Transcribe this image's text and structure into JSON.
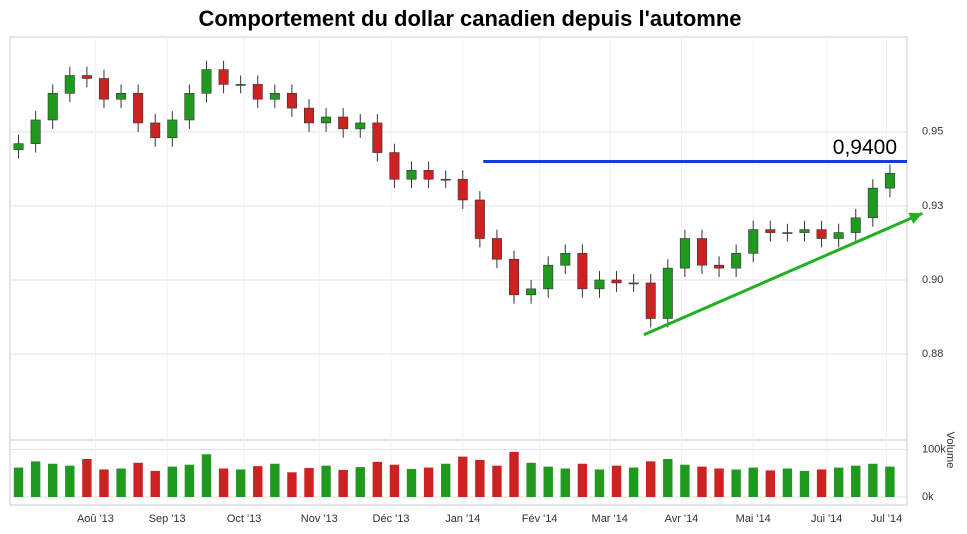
{
  "chart_data": {
    "type": "candlestick",
    "title": "Comportement du dollar canadien depuis l'automne",
    "open": [
      0.944,
      0.946,
      0.954,
      0.963,
      0.969,
      0.968,
      0.961,
      0.963,
      0.953,
      0.948,
      0.954,
      0.963,
      0.971,
      0.966,
      0.966,
      0.961,
      0.963,
      0.958,
      0.953,
      0.955,
      0.951,
      0.953,
      0.943,
      0.934,
      0.937,
      0.934,
      0.934,
      0.927,
      0.914,
      0.907,
      0.895,
      0.897,
      0.905,
      0.909,
      0.897,
      0.9,
      0.899,
      0.899,
      0.887,
      0.904,
      0.914,
      0.905,
      0.904,
      0.909,
      0.917,
      0.916,
      0.916,
      0.917,
      0.914,
      0.916,
      0.921,
      0.931
    ],
    "high": [
      0.949,
      0.957,
      0.966,
      0.972,
      0.972,
      0.971,
      0.966,
      0.966,
      0.956,
      0.957,
      0.966,
      0.974,
      0.974,
      0.969,
      0.969,
      0.966,
      0.966,
      0.961,
      0.958,
      0.958,
      0.956,
      0.956,
      0.946,
      0.94,
      0.94,
      0.937,
      0.937,
      0.93,
      0.917,
      0.91,
      0.9,
      0.908,
      0.912,
      0.912,
      0.903,
      0.903,
      0.902,
      0.902,
      0.907,
      0.917,
      0.917,
      0.908,
      0.912,
      0.92,
      0.92,
      0.919,
      0.92,
      0.92,
      0.919,
      0.924,
      0.934,
      0.939
    ],
    "low": [
      0.941,
      0.943,
      0.951,
      0.96,
      0.965,
      0.958,
      0.958,
      0.95,
      0.945,
      0.945,
      0.951,
      0.96,
      0.963,
      0.963,
      0.958,
      0.958,
      0.955,
      0.95,
      0.95,
      0.948,
      0.948,
      0.94,
      0.931,
      0.931,
      0.931,
      0.931,
      0.924,
      0.911,
      0.904,
      0.892,
      0.892,
      0.894,
      0.902,
      0.894,
      0.894,
      0.896,
      0.896,
      0.884,
      0.884,
      0.901,
      0.902,
      0.901,
      0.901,
      0.906,
      0.913,
      0.913,
      0.913,
      0.911,
      0.911,
      0.913,
      0.918,
      0.928
    ],
    "close": [
      0.946,
      0.954,
      0.963,
      0.969,
      0.968,
      0.961,
      0.963,
      0.953,
      0.948,
      0.954,
      0.963,
      0.971,
      0.966,
      0.966,
      0.961,
      0.963,
      0.958,
      0.953,
      0.955,
      0.951,
      0.953,
      0.943,
      0.934,
      0.937,
      0.934,
      0.934,
      0.927,
      0.914,
      0.907,
      0.895,
      0.897,
      0.905,
      0.909,
      0.897,
      0.9,
      0.899,
      0.899,
      0.887,
      0.904,
      0.914,
      0.905,
      0.904,
      0.909,
      0.917,
      0.916,
      0.916,
      0.917,
      0.914,
      0.916,
      0.921,
      0.931,
      0.936
    ],
    "volume": [
      62000,
      75000,
      70000,
      66000,
      80000,
      58000,
      60000,
      72000,
      55000,
      64000,
      68000,
      90000,
      60000,
      58000,
      65000,
      70000,
      52000,
      61000,
      66000,
      57000,
      63000,
      74000,
      68000,
      59000,
      62000,
      70000,
      85000,
      78000,
      66000,
      95000,
      72000,
      64000,
      60000,
      70000,
      58000,
      66000,
      62000,
      75000,
      80000,
      68000,
      64000,
      60000,
      58000,
      62000,
      56000,
      60000,
      55000,
      58000,
      62000,
      66000,
      70000,
      64000
    ],
    "up_color": "#1f9a1f",
    "down_color": "#cc2222",
    "xlim": [
      -0.5,
      52
    ],
    "xticks": [
      {
        "value": 4.5,
        "label": "Aoû '13"
      },
      {
        "value": 8.7,
        "label": "Sep '13"
      },
      {
        "value": 13.2,
        "label": "Oct '13"
      },
      {
        "value": 17.6,
        "label": "Nov '13"
      },
      {
        "value": 21.8,
        "label": "Déc '13"
      },
      {
        "value": 26,
        "label": "Jan '14"
      },
      {
        "value": 30.5,
        "label": "Fév '14"
      },
      {
        "value": 34.6,
        "label": "Mar '14"
      },
      {
        "value": 38.8,
        "label": "Avr '14"
      },
      {
        "value": 43,
        "label": "Mai '14"
      },
      {
        "value": 47.3,
        "label": "Jui '14"
      },
      {
        "value": 50.8,
        "label": "Jul '14"
      }
    ],
    "ylim": [
      0.846,
      0.982
    ],
    "yticks": [
      {
        "value": 0.875,
        "label": "0.88"
      },
      {
        "value": 0.9,
        "label": "0.90"
      },
      {
        "value": 0.925,
        "label": "0.93"
      },
      {
        "value": 0.95,
        "label": "0.95"
      }
    ],
    "y2label": "Volume",
    "y2lim": [
      0,
      120000
    ],
    "y2ticks": [
      {
        "value": 0,
        "label": "0k"
      },
      {
        "value": 100000,
        "label": "100k"
      }
    ],
    "level": {
      "value": 0.94,
      "label": "0,9400",
      "x": [
        27.2,
        52
      ],
      "color": "#1040d0"
    },
    "trend": {
      "x": [
        36.6,
        52.9
      ],
      "values": [
        0.8815,
        0.9225
      ],
      "color": "#22b022"
    },
    "grid": true
  }
}
